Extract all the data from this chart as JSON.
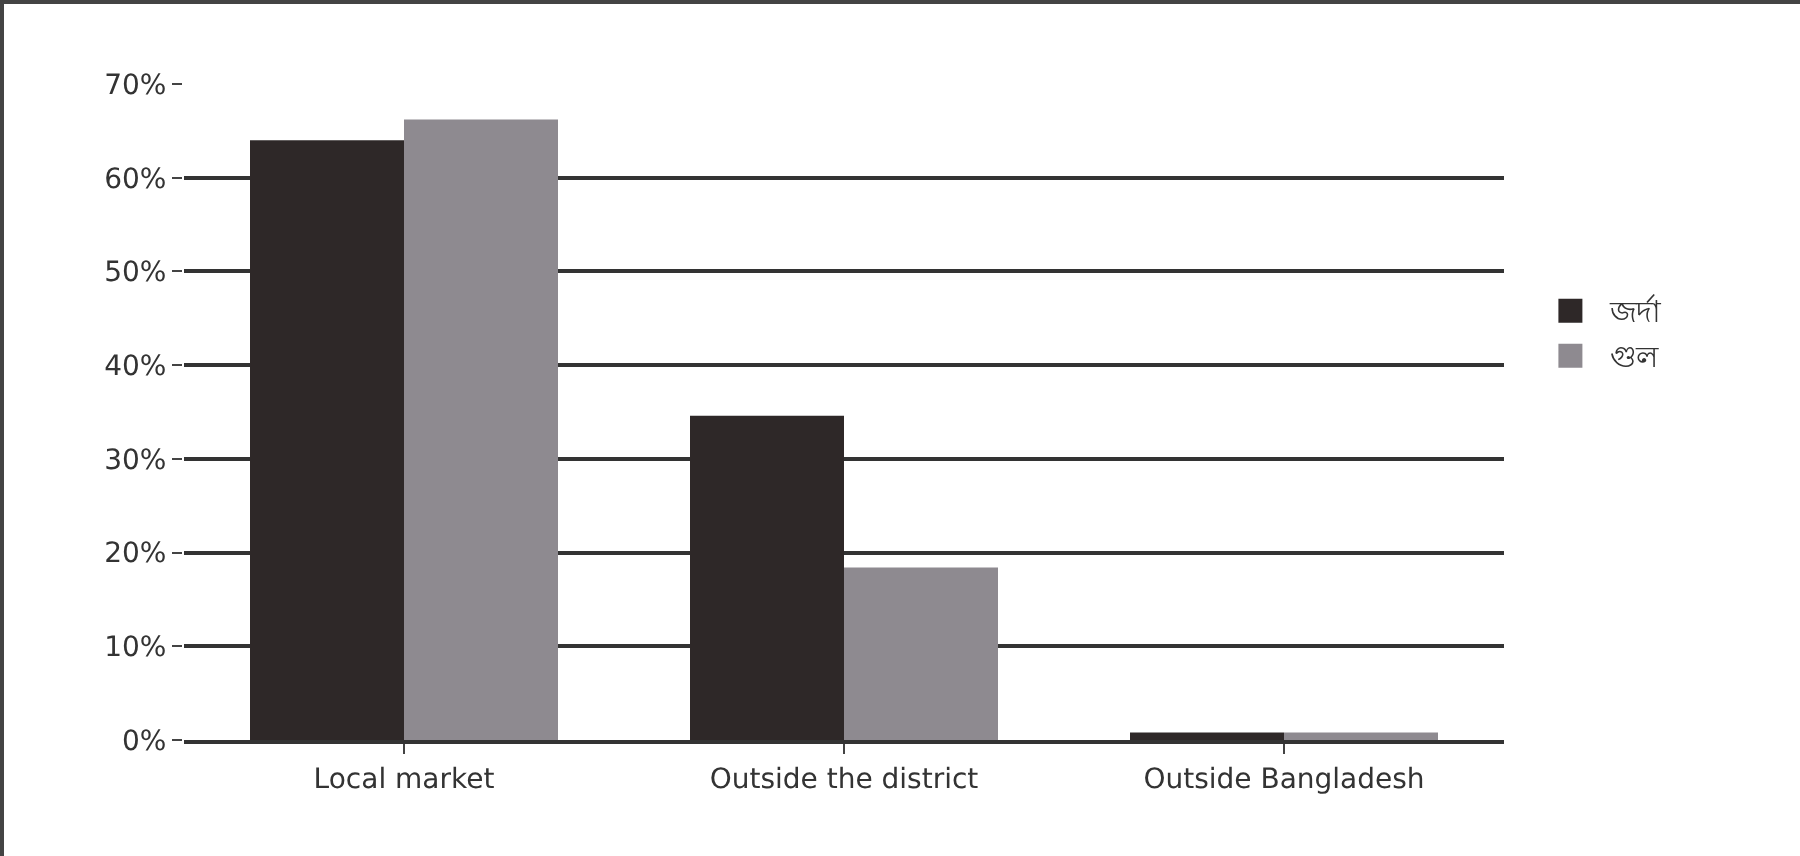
{
  "chart_data": {
    "type": "bar",
    "categories": [
      "Local market",
      "Outside the district",
      "Outside Bangladesh"
    ],
    "series": [
      {
        "name": "জর্দা",
        "color": "#2e2828",
        "values": [
          64,
          34.6,
          0.8
        ]
      },
      {
        "name": "গুল",
        "color": "#8e8a90",
        "values": [
          66.2,
          18.4,
          0.8
        ]
      }
    ],
    "ylim": [
      0,
      70
    ],
    "yticks": [
      {
        "value": 0,
        "label": "0%"
      },
      {
        "value": 10,
        "label": "10%"
      },
      {
        "value": 20,
        "label": "20%"
      },
      {
        "value": 30,
        "label": "30%"
      },
      {
        "value": 40,
        "label": "40%"
      },
      {
        "value": 50,
        "label": "50%"
      },
      {
        "value": 60,
        "label": "60%"
      },
      {
        "value": 70,
        "label": "70%"
      }
    ],
    "grid": "y",
    "legend": "right"
  }
}
